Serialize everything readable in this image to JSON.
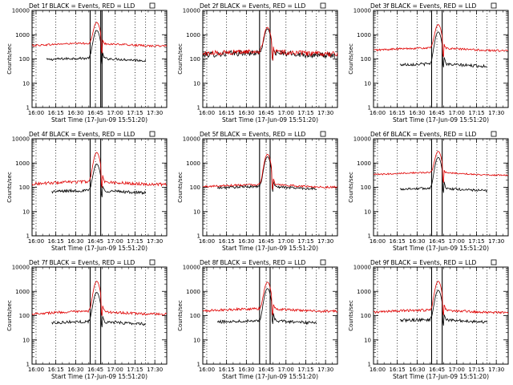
{
  "colors": {
    "events": "#000000",
    "lld": "#e00000",
    "frame": "#000000",
    "grid": "#000000",
    "background": "#ffffff"
  },
  "shared": {
    "xlabel": "Start Time (17-Jun-09 15:51:20)",
    "ylabel": "Counts/sec",
    "x_ticks": [
      "16:00",
      "16:15",
      "16:30",
      "16:45",
      "17:00",
      "17:15",
      "17:30"
    ],
    "y_ticks": [
      "1",
      "10",
      "100",
      "1000",
      "10000"
    ],
    "y_log": true,
    "ylim": [
      1,
      10000
    ],
    "xlim_minutes": [
      -3,
      99
    ]
  },
  "chart_data": [
    {
      "type": "line",
      "title": "Det 1f BLACK = Events, RED = LLD",
      "x_range_min": [
        -3,
        99
      ],
      "markers_min": [
        41,
        49,
        50,
        83
      ],
      "series": [
        {
          "name": "Events",
          "color": "#000000",
          "start": 8,
          "end": 83,
          "base": 95,
          "peak": 1500,
          "peak_at": 46,
          "noise": 0.05
        },
        {
          "name": "LLD",
          "color": "#e00000",
          "start": -3,
          "end": 99,
          "base": 390,
          "peak": 3200,
          "peak_at": 46,
          "noise": 0.04
        }
      ]
    },
    {
      "type": "line",
      "title": "Det 2f BLACK = Events, RED = LLD",
      "x_range_min": [
        -3,
        99
      ],
      "markers_min": [
        40,
        48,
        83
      ],
      "series": [
        {
          "name": "Events",
          "color": "#000000",
          "start": -3,
          "end": 97,
          "base": 160,
          "peak": 1700,
          "peak_at": 46,
          "noise": 0.12
        },
        {
          "name": "LLD",
          "color": "#e00000",
          "start": -3,
          "end": 99,
          "base": 180,
          "peak": 2000,
          "peak_at": 46,
          "noise": 0.1
        }
      ]
    },
    {
      "type": "line",
      "title": "Det 3f BLACK = Events, RED = LLD",
      "x_range_min": [
        -3,
        99
      ],
      "markers_min": [
        41,
        49,
        83
      ],
      "series": [
        {
          "name": "Events",
          "color": "#000000",
          "start": 17,
          "end": 83,
          "base": 55,
          "peak": 1300,
          "peak_at": 46,
          "noise": 0.06
        },
        {
          "name": "LLD",
          "color": "#e00000",
          "start": -3,
          "end": 99,
          "base": 250,
          "peak": 2600,
          "peak_at": 46,
          "noise": 0.04
        }
      ]
    },
    {
      "type": "line",
      "title": "Det 4f BLACK = Events, RED = LLD",
      "x_range_min": [
        -3,
        99
      ],
      "markers_min": [
        41,
        49,
        83
      ],
      "series": [
        {
          "name": "Events",
          "color": "#000000",
          "start": 12,
          "end": 83,
          "base": 65,
          "peak": 900,
          "peak_at": 46,
          "noise": 0.06
        },
        {
          "name": "LLD",
          "color": "#e00000",
          "start": -3,
          "end": 99,
          "base": 150,
          "peak": 2700,
          "peak_at": 46,
          "noise": 0.06
        }
      ]
    },
    {
      "type": "line",
      "title": "Det 5f BLACK = Events, RED = LLD",
      "x_range_min": [
        -3,
        99
      ],
      "markers_min": [
        40,
        48,
        83
      ],
      "series": [
        {
          "name": "Events",
          "color": "#000000",
          "start": 8,
          "end": 83,
          "base": 95,
          "peak": 1800,
          "peak_at": 46,
          "noise": 0.05
        },
        {
          "name": "LLD",
          "color": "#e00000",
          "start": -3,
          "end": 99,
          "base": 115,
          "peak": 2300,
          "peak_at": 46,
          "noise": 0.04
        }
      ]
    },
    {
      "type": "line",
      "title": "Det 6f BLACK = Events, RED = LLD",
      "x_range_min": [
        -3,
        99
      ],
      "markers_min": [
        41,
        49,
        83
      ],
      "series": [
        {
          "name": "Events",
          "color": "#000000",
          "start": 17,
          "end": 83,
          "base": 80,
          "peak": 1700,
          "peak_at": 46,
          "noise": 0.05
        },
        {
          "name": "LLD",
          "color": "#e00000",
          "start": -3,
          "end": 99,
          "base": 360,
          "peak": 3000,
          "peak_at": 46,
          "noise": 0.03
        }
      ]
    },
    {
      "type": "line",
      "title": "Det 7f BLACK = Events, RED = LLD",
      "x_range_min": [
        -3,
        99
      ],
      "markers_min": [
        41,
        49,
        83
      ],
      "series": [
        {
          "name": "Events",
          "color": "#000000",
          "start": 12,
          "end": 83,
          "base": 50,
          "peak": 900,
          "peak_at": 46,
          "noise": 0.06
        },
        {
          "name": "LLD",
          "color": "#e00000",
          "start": -3,
          "end": 99,
          "base": 130,
          "peak": 2600,
          "peak_at": 46,
          "noise": 0.05
        }
      ]
    },
    {
      "type": "line",
      "title": "Det 8f BLACK = Events, RED = LLD",
      "x_range_min": [
        -3,
        99
      ],
      "markers_min": [
        40,
        48,
        83
      ],
      "series": [
        {
          "name": "Events",
          "color": "#000000",
          "start": 8,
          "end": 83,
          "base": 55,
          "peak": 1300,
          "peak_at": 46,
          "noise": 0.06
        },
        {
          "name": "LLD",
          "color": "#e00000",
          "start": -3,
          "end": 99,
          "base": 170,
          "peak": 2400,
          "peak_at": 46,
          "noise": 0.05
        }
      ]
    },
    {
      "type": "line",
      "title": "Det 9f BLACK = Events, RED = LLD",
      "x_range_min": [
        -3,
        99
      ],
      "markers_min": [
        41,
        49,
        83
      ],
      "series": [
        {
          "name": "Events",
          "color": "#000000",
          "start": 17,
          "end": 83,
          "base": 60,
          "peak": 1100,
          "peak_at": 46,
          "noise": 0.06
        },
        {
          "name": "LLD",
          "color": "#e00000",
          "start": -3,
          "end": 99,
          "base": 150,
          "peak": 2600,
          "peak_at": 46,
          "noise": 0.05
        }
      ]
    }
  ]
}
